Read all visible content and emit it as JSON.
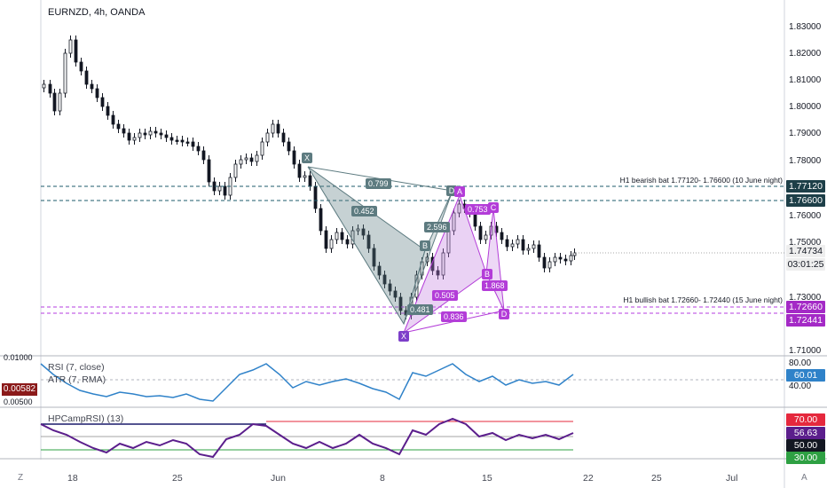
{
  "header": {
    "title": "EURNZD, 4h, OANDA"
  },
  "colors": {
    "bull": "#131722",
    "accent_teal": "#5d7b80",
    "accent_purple": "#b33dd8",
    "bearish_line": "#1d5b6b",
    "bullish_line": "#b63ee0",
    "rsi_line": "#2f82c9",
    "hpc_line": "#5b1e8c"
  },
  "price_axis": {
    "ticks": [
      "1.83000",
      "1.82000",
      "1.81000",
      "1.80000",
      "1.79000",
      "1.78000",
      "1.77120",
      "1.76600",
      "1.76000",
      "1.75000",
      "1.74734",
      "03:01:25",
      "1.73000",
      "1.72660",
      "1.72441",
      "1.71000"
    ]
  },
  "price_badges": [
    {
      "id": "bear-top",
      "text": "1.77120",
      "color": "#1d3f48"
    },
    {
      "id": "bear-bottom",
      "text": "1.76600",
      "color": "#1d3f48"
    },
    {
      "id": "current",
      "text": "1.74734",
      "color": "#eeeeee"
    },
    {
      "id": "countdown",
      "text": "03:01:25",
      "color": "#eeeeee"
    },
    {
      "id": "bull-top",
      "text": "1.72660",
      "color": "#a42ac6"
    },
    {
      "id": "bull-bottom",
      "text": "1.72441",
      "color": "#a42ac6"
    }
  ],
  "annotations": {
    "bearish": "H1 bearish bat 1.77120- 1.76600 (10 June night)",
    "bullish": "H1 bullish bat 1.72660- 1.72440 (15 June night)"
  },
  "pattern_teal": {
    "points": [
      "X",
      "B",
      "D"
    ],
    "ratios": [
      "0.799",
      "0.452",
      "2.596",
      "0.505"
    ]
  },
  "pattern_purple": {
    "points": [
      "X",
      "A",
      "B",
      "C",
      "D"
    ],
    "ratios": [
      "0.753",
      "1.868",
      "0.836",
      "0.481"
    ]
  },
  "rsi_pane": {
    "label1": "RSI (7, close)",
    "label2": "ATR (7, RMA)",
    "axis_top": "0.01000",
    "axis_ticks": [
      "80.00",
      "40.00"
    ],
    "value": "60.01",
    "atr_value": "0.00582",
    "atr_bottom": "0.00500"
  },
  "hpc_pane": {
    "label": "HPCampRSI) (13)",
    "levels": [
      {
        "text": "70.00",
        "color": "#e5283d"
      },
      {
        "text": "56.63",
        "color": "#5b1e8c"
      },
      {
        "text": "50.00",
        "color": "#131722"
      },
      {
        "text": "30.00",
        "color": "#2ea043"
      }
    ]
  },
  "date_axis": {
    "labels": [
      "18",
      "25",
      "Jun",
      "8",
      "15",
      "22",
      "25",
      "Jul"
    ]
  },
  "corner": {
    "left": "Z",
    "right": "A"
  }
}
